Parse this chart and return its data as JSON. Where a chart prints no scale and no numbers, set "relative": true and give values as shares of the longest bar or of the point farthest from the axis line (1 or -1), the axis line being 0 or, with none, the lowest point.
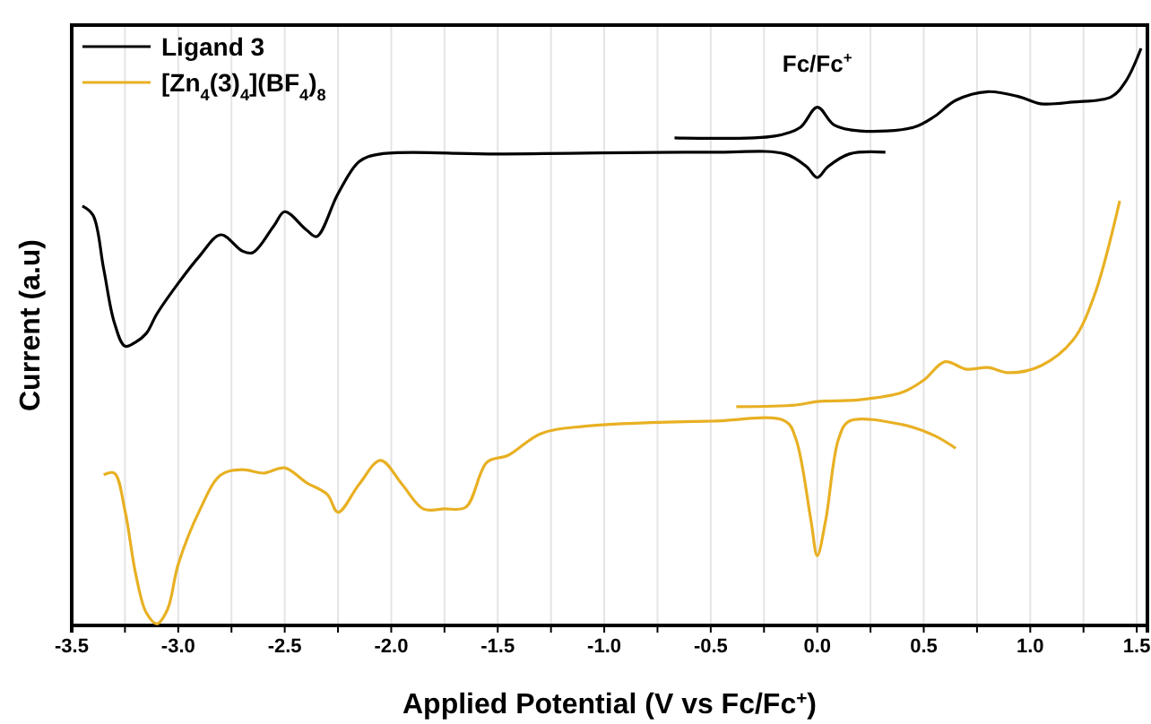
{
  "chart_data": {
    "type": "line",
    "relative": true,
    "xlabel": "Applied Potential (V vs Fc/Fc$^{+}$)",
    "ylabel": "Current (a.u)",
    "xlim": [
      -3.5,
      1.55
    ],
    "xticks": [
      {
        "value": -3.5,
        "label": "-3.5"
      },
      {
        "value": -3.25,
        "label": null
      },
      {
        "value": -3,
        "label": "-3.0"
      },
      {
        "value": -2.75,
        "label": null
      },
      {
        "value": -2.5,
        "label": "-2.5"
      },
      {
        "value": -2.25,
        "label": null
      },
      {
        "value": -2,
        "label": "-2.0"
      },
      {
        "value": -1.75,
        "label": null
      },
      {
        "value": -1.5,
        "label": "-1.5"
      },
      {
        "value": -1.25,
        "label": null
      },
      {
        "value": -1,
        "label": "-1.0"
      },
      {
        "value": -0.75,
        "label": null
      },
      {
        "value": -0.5,
        "label": "-0.5"
      },
      {
        "value": -0.25,
        "label": null
      },
      {
        "value": 0,
        "label": "0.0"
      },
      {
        "value": 0.25,
        "label": null
      },
      {
        "value": 0.5,
        "label": "0.5"
      },
      {
        "value": 0.75,
        "label": null
      },
      {
        "value": 1,
        "label": "1.0"
      },
      {
        "value": 1.25,
        "label": null
      },
      {
        "value": 1.5,
        "label": "1.5"
      }
    ],
    "grid": "x",
    "legend": "top left",
    "line_style": "solid",
    "marker": "none",
    "annotations": [
      {
        "text": "Fc/Fc$^{+}$",
        "x": 0,
        "y": 0.898
      }
    ],
    "series": [
      {
        "name": "Ligand 3",
        "color": "#000000",
        "x": [
          -3.45,
          -3.4,
          -3.35,
          -3.3,
          -3.25,
          -3.2,
          -3.15,
          -3.1,
          -3.0,
          -2.9,
          -2.8,
          -2.7,
          -2.65,
          -2.55,
          -2.5,
          -2.4,
          -2.35,
          -2.25,
          -2.15,
          -2.05,
          -1.5,
          -0.5,
          -0.15,
          -0.05,
          0,
          0.05,
          0.15,
          0.32,
          null,
          -0.67,
          -0.2,
          -0.08,
          0,
          0.08,
          0.2,
          0.45,
          0.55,
          0.65,
          0.8,
          0.95,
          1.05,
          1.2,
          1.38,
          1.45,
          1.52
        ],
        "values": [
          0.727,
          0.711,
          0.618,
          0.525,
          0.484,
          0.491,
          0.506,
          0.54,
          0.593,
          0.64,
          0.677,
          0.649,
          0.646,
          0.693,
          0.717,
          0.686,
          0.674,
          0.748,
          0.804,
          0.817,
          0.817,
          0.82,
          0.817,
          0.795,
          0.776,
          0.795,
          0.817,
          0.82,
          null,
          0.845,
          0.848,
          0.863,
          0.898,
          0.867,
          0.857,
          0.863,
          0.882,
          0.91,
          0.925,
          0.916,
          0.904,
          0.907,
          0.916,
          0.944,
          1
        ]
      },
      {
        "name": "[Zn$_{4}$(3)$_{4}$](BF$_{4}$)$_{8}$",
        "color": "#e8b023",
        "x": [
          -3.35,
          -3.3,
          -3.25,
          -3.2,
          -3.15,
          -3.1,
          -3.05,
          -3.0,
          -2.9,
          -2.8,
          -2.7,
          -2.6,
          -2.5,
          -2.4,
          -2.3,
          -2.25,
          -2.15,
          -2.05,
          -1.95,
          -1.85,
          -1.75,
          -1.65,
          -1.55,
          -1.45,
          -1.3,
          -1.1,
          -0.5,
          -0.15,
          -0.1,
          -0.03,
          0,
          0.04,
          0.1,
          0.15,
          0.4,
          0.55,
          0.65,
          null,
          -0.38,
          -0.1,
          0,
          0.2,
          0.4,
          0.5,
          0.6,
          0.7,
          0.8,
          0.9,
          1.05,
          1.2,
          1.3,
          1.42
        ],
        "values": [
          0.261,
          0.264,
          0.199,
          0.09,
          0.022,
          0.003,
          0.028,
          0.106,
          0.199,
          0.261,
          0.27,
          0.264,
          0.273,
          0.248,
          0.227,
          0.196,
          0.245,
          0.286,
          0.245,
          0.202,
          0.202,
          0.205,
          0.283,
          0.295,
          0.332,
          0.345,
          0.354,
          0.354,
          0.323,
          0.183,
          0.121,
          0.183,
          0.323,
          0.354,
          0.348,
          0.329,
          0.307,
          null,
          0.379,
          0.382,
          0.388,
          0.391,
          0.404,
          0.425,
          0.457,
          0.444,
          0.447,
          0.438,
          0.45,
          0.494,
          0.571,
          0.736
        ]
      }
    ]
  }
}
